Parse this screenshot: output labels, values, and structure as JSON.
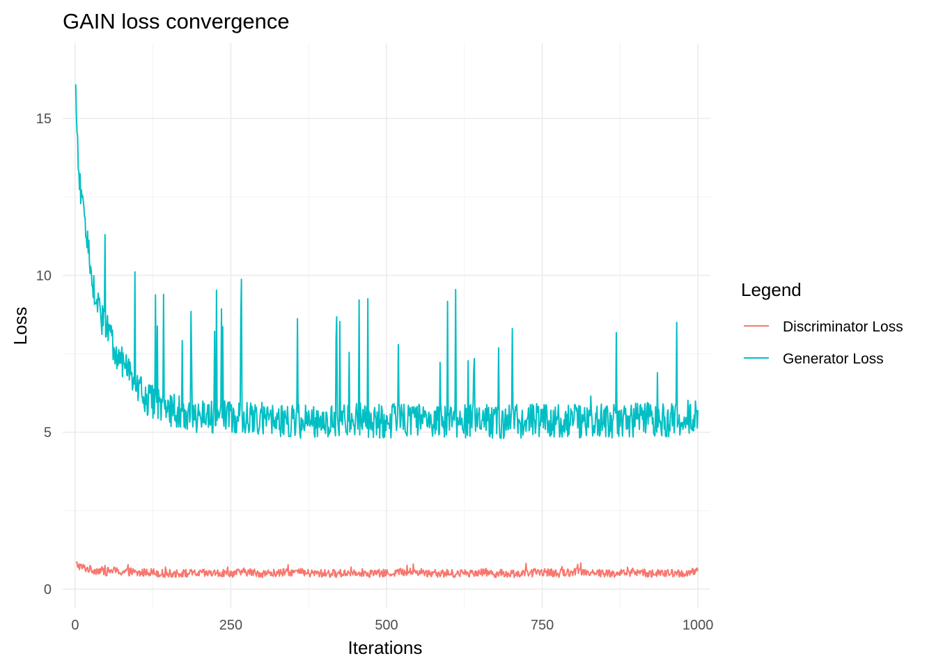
{
  "chart_data": {
    "type": "line",
    "title": "GAIN loss convergence",
    "xlabel": "Iterations",
    "ylabel": "Loss",
    "xlim": [
      -20,
      1020
    ],
    "ylim": [
      -0.6,
      17.4
    ],
    "x_ticks": [
      0,
      250,
      500,
      750,
      1000
    ],
    "x_tick_labels": [
      "0",
      "250",
      "500",
      "750",
      "1000"
    ],
    "y_ticks": [
      0,
      5,
      10,
      15
    ],
    "y_tick_labels": [
      "0",
      "5",
      "10",
      "15"
    ],
    "grid": true,
    "legend": {
      "title": "Legend",
      "position": "right"
    },
    "series": [
      {
        "name": "Discriminator Loss",
        "color": "#F8766D",
        "x": [
          1,
          10,
          20,
          30,
          40,
          50,
          60,
          70,
          80,
          90,
          100,
          120,
          140,
          160,
          180,
          200,
          225,
          250,
          275,
          300,
          325,
          350,
          375,
          400,
          425,
          450,
          475,
          500,
          525,
          550,
          575,
          600,
          625,
          650,
          675,
          700,
          725,
          750,
          775,
          800,
          825,
          850,
          875,
          900,
          925,
          950,
          975,
          1000
        ],
        "y": [
          0.8,
          0.7,
          0.65,
          0.6,
          0.6,
          0.55,
          0.6,
          0.55,
          0.55,
          0.55,
          0.5,
          0.55,
          0.5,
          0.5,
          0.5,
          0.5,
          0.5,
          0.5,
          0.55,
          0.5,
          0.5,
          0.55,
          0.5,
          0.5,
          0.5,
          0.55,
          0.5,
          0.5,
          0.55,
          0.55,
          0.5,
          0.5,
          0.5,
          0.55,
          0.5,
          0.5,
          0.5,
          0.55,
          0.5,
          0.55,
          0.55,
          0.5,
          0.5,
          0.55,
          0.5,
          0.5,
          0.5,
          0.55
        ],
        "noise": 0.13
      },
      {
        "name": "Generator Loss",
        "color": "#00BFC4",
        "x": [
          1,
          5,
          10,
          15,
          20,
          25,
          30,
          40,
          50,
          60,
          70,
          80,
          90,
          100,
          110,
          120,
          130,
          140,
          150,
          175,
          200,
          225,
          250,
          275,
          300,
          350,
          400,
          450,
          500,
          550,
          600,
          650,
          700,
          750,
          800,
          850,
          900,
          950,
          1000
        ],
        "y": [
          16.0,
          13.2,
          12.6,
          11.9,
          11.0,
          10.3,
          9.6,
          8.7,
          8.3,
          7.8,
          7.4,
          7.1,
          6.8,
          6.5,
          6.2,
          6.0,
          5.9,
          5.8,
          5.7,
          5.6,
          5.5,
          5.5,
          5.45,
          5.4,
          5.4,
          5.35,
          5.35,
          5.4,
          5.35,
          5.4,
          5.35,
          5.35,
          5.35,
          5.4,
          5.35,
          5.35,
          5.4,
          5.4,
          5.5
        ],
        "noise": 0.55
      }
    ]
  }
}
